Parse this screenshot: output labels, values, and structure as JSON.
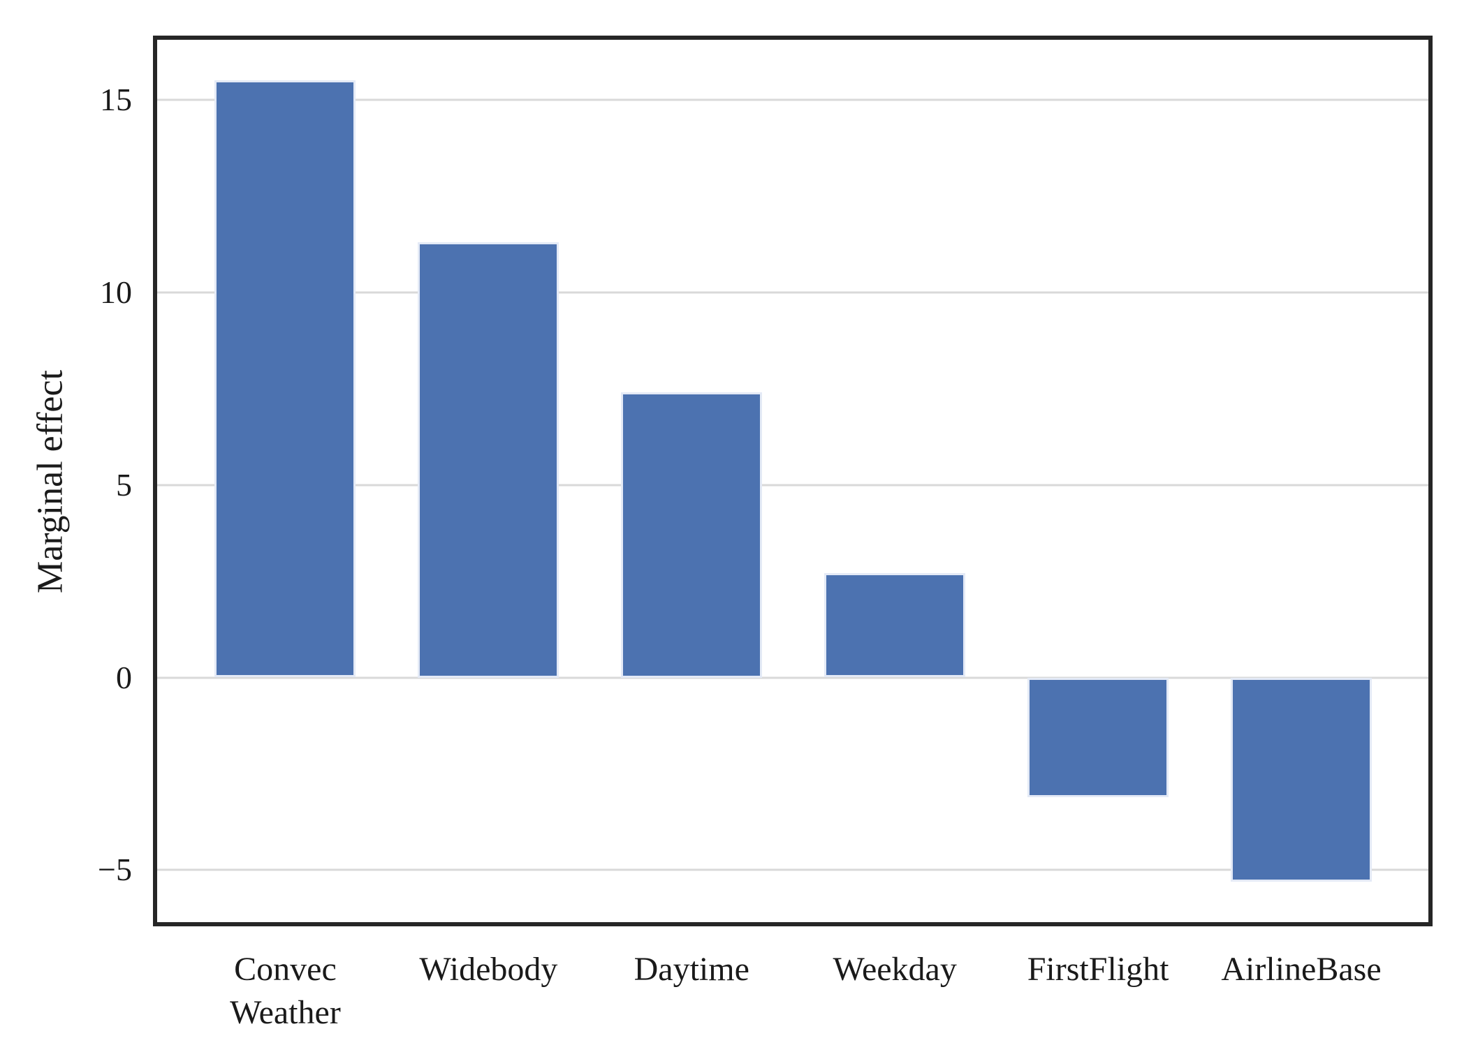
{
  "figure": {
    "title": "",
    "colors": {
      "bar": "#4c72b0",
      "bar_edge": "#e4eaf6",
      "gridline": "#d9d9d9",
      "spine": "#262626",
      "text": "#1a1a1a",
      "background": "#ffffff"
    }
  },
  "chart_data": {
    "type": "bar",
    "categories": [
      "Convec\nWeather",
      "Widebody",
      "Daytime",
      "Weekday",
      "FirstFlight",
      "AirlineBase"
    ],
    "values": [
      15.5,
      11.3,
      7.4,
      2.7,
      -3.1,
      -5.3
    ],
    "title": "",
    "xlabel": "",
    "ylabel": "Marginal effect",
    "ylim": [
      -6.35,
      16.55
    ],
    "yticks": [
      15,
      10,
      5,
      0,
      -5
    ],
    "ytick_labels": [
      "15",
      "10",
      "5",
      "0",
      "−5"
    ],
    "grid": true,
    "grid_axis": "y",
    "legend": false,
    "bar_color": "#4c72b0"
  }
}
